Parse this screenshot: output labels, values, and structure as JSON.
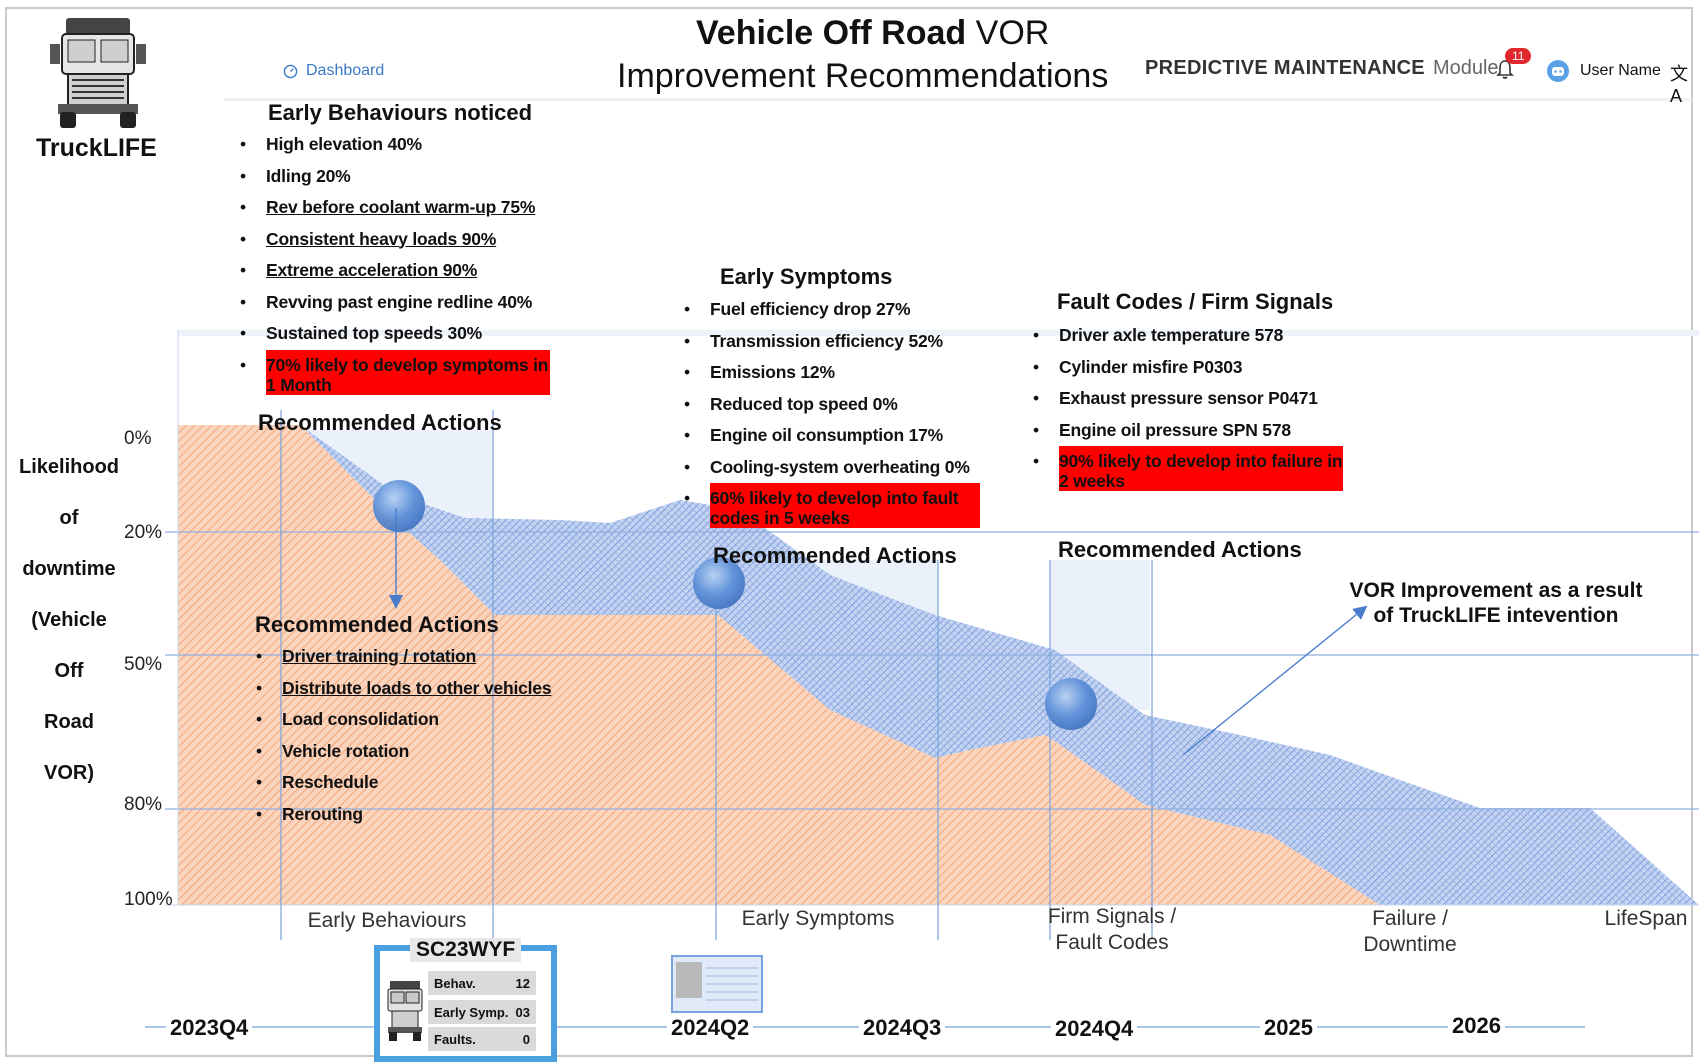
{
  "header": {
    "title_bold": "Vehicle Off Road",
    "title_rest": "VOR",
    "subtitle": "Improvement Recommendations",
    "brand": "TruckLIFE",
    "nav_link": "Dashboard",
    "module_title": "PREDICTIVE MAINTENANCE",
    "module_sub": "Module",
    "notification_count": "11",
    "user_name": "User Name"
  },
  "early_behaviours": {
    "heading": "Early Behaviours noticed",
    "items": [
      "High elevation 40%",
      "Idling 20%",
      "Rev before coolant warm-up 75%",
      "Consistent heavy loads 90%",
      "Extreme acceleration 90%",
      "Revving past engine redline 40%",
      "Sustained top speeds 30%",
      "70% likely to develop symptoms in 1 Month"
    ],
    "actions_heading": "Recommended Actions"
  },
  "recommended_actions": {
    "heading": "Recommended Actions",
    "items": [
      "Driver training / rotation",
      "Distribute loads to other vehicles",
      "Load consolidation",
      "Vehicle rotation",
      "Reschedule",
      "Rerouting"
    ]
  },
  "early_symptoms": {
    "heading": "Early Symptoms",
    "items": [
      "Fuel efficiency drop 27%",
      "Transmission efficiency 52%",
      "Emissions 12%",
      "Reduced top speed 0%",
      "Engine oil consumption 17%",
      "Cooling-system overheating 0%",
      "60% likely to develop into fault codes in 5 weeks"
    ],
    "actions_heading": "Recommended Actions"
  },
  "fault_codes": {
    "heading": "Fault Codes / Firm Signals",
    "items": [
      "Driver axle temperature 578",
      "Cylinder misfire P0303",
      "Exhaust pressure sensor P0471",
      "Engine oil pressure SPN 578",
      "90% likely to develop into failure in 2 weeks"
    ],
    "actions_heading": "Recommended Actions"
  },
  "chart": {
    "y_label": [
      "Likelihood",
      "of",
      "downtime",
      "(Vehicle",
      "Off",
      "Road",
      "VOR)"
    ],
    "y_ticks": [
      "0%",
      "20%",
      "50%",
      "80%",
      "100%"
    ],
    "phases": [
      {
        "line1": "Early Behaviours",
        "line2": ""
      },
      {
        "line1": "Early Symptoms",
        "line2": ""
      },
      {
        "line1": "Firm Signals /",
        "line2": "Fault Codes"
      },
      {
        "line1": "Failure /",
        "line2": "Downtime"
      },
      {
        "line1": "LifeSpan",
        "line2": ""
      }
    ],
    "timeline": [
      "2023Q4",
      "2024Q2",
      "2024Q3",
      "2024Q4",
      "2025",
      "2026"
    ],
    "vor_note": [
      "VOR Improvement as a result",
      "of TruckLIFE intevention"
    ],
    "colors": {
      "orange": "#f4a77a",
      "blue": "#5b86d6",
      "grid": "#8fb0e0"
    }
  },
  "vehicle_card": {
    "plate": "SC23WYF",
    "rows": [
      {
        "label": "Behav.",
        "value": "12"
      },
      {
        "label": "Early Symp.",
        "value": "03"
      },
      {
        "label": "Faults.",
        "value": "0"
      }
    ]
  }
}
